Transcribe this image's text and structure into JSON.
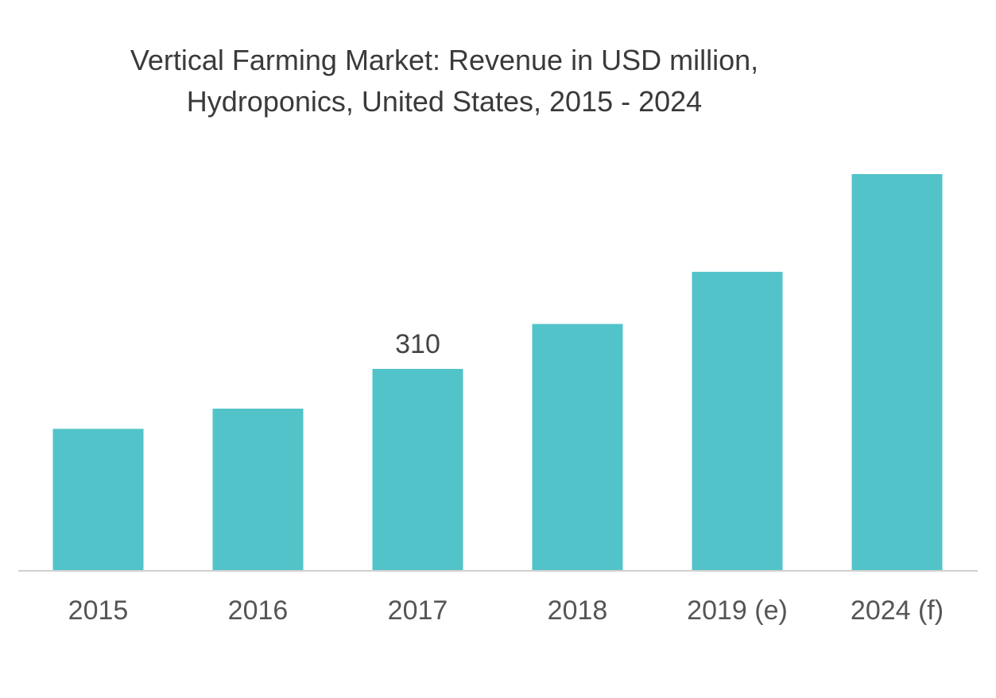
{
  "chart_data": {
    "type": "bar",
    "title_lines": [
      "Vertical Farming Market: Revenue in USD million,",
      "Hydroponics, United States, 2015 - 2024"
    ],
    "categories": [
      "2015",
      "2016",
      "2017",
      "2018",
      "2019 (e)",
      "2024 (f)"
    ],
    "values": [
      218,
      249,
      310,
      379,
      459,
      609
    ],
    "data_labels": [
      {
        "category": "2017",
        "text": "310"
      }
    ],
    "xlabel": "",
    "ylabel": "",
    "ylim": [
      0,
      609
    ],
    "grid": false,
    "legend": "none",
    "colors": {
      "bar": "#52c4c9",
      "baseline": "#d0d0d0",
      "text": "#3a3a3a"
    }
  }
}
